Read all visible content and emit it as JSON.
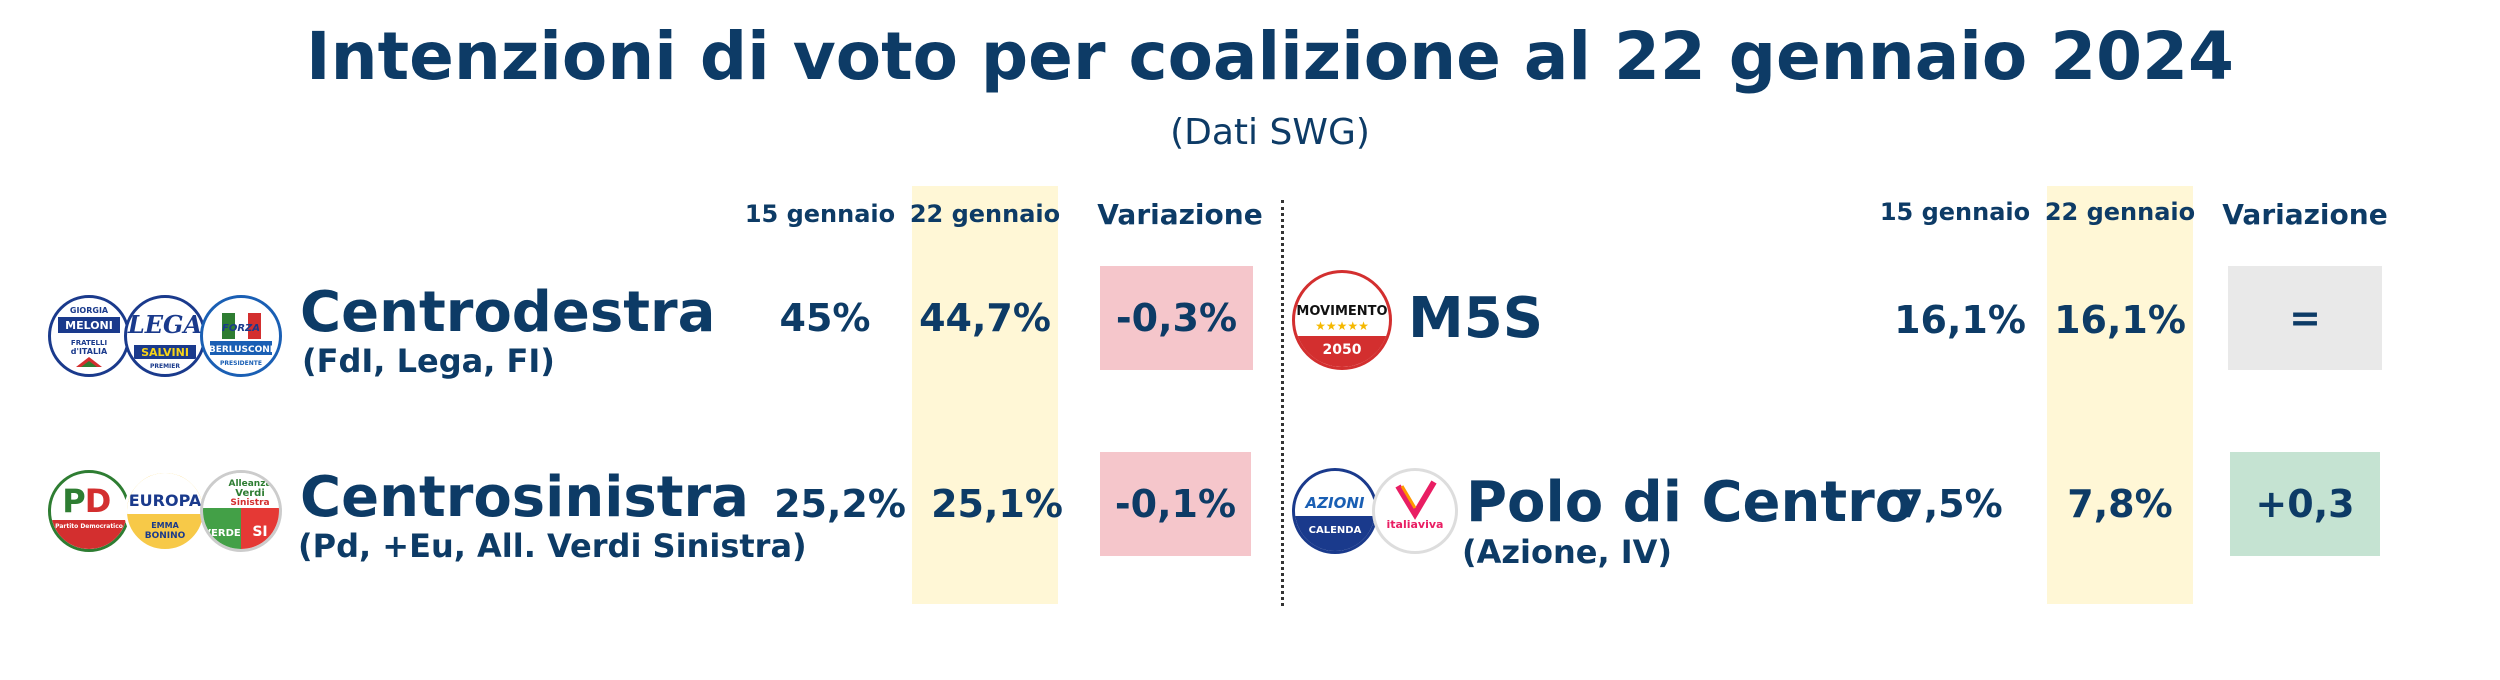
{
  "chart_data": {
    "type": "table",
    "title": "Intenzioni di voto per coalizione al 22 gennaio 2024",
    "subtitle": "(Dati SWG)",
    "columns": [
      "15 gennaio",
      "22 gennaio",
      "Variazione"
    ],
    "rows": [
      {
        "name": "Centrodestra",
        "detail": "(FdI, Lega, FI)",
        "jan15": "45%",
        "jan22": "44,7%",
        "variation": "-0,3%",
        "variation_color": "#f5c6cb",
        "logos": [
          {
            "icon": "fdi-logo",
            "text": "GIORGIA MELONI FRATELLI d'ITALIA"
          },
          {
            "icon": "lega-logo",
            "text": "LEGA SALVINI PREMIER"
          },
          {
            "icon": "forza-italia-logo",
            "text": "FORZA ITALIA BERLUSCONI PRESIDENTE"
          }
        ]
      },
      {
        "name": "Centrosinistra",
        "detail": "(Pd, +Eu, All. Verdi Sinistra)",
        "jan15": "25,2%",
        "jan22": "25,1%",
        "variation": "-0,1%",
        "variation_color": "#f5c6cb",
        "logos": [
          {
            "icon": "pd-logo",
            "text": "PD Partito Democratico"
          },
          {
            "icon": "piu-europa-logo",
            "text": "+EUROPA EMMA BONINO"
          },
          {
            "icon": "avs-logo",
            "text": "Alleanza Verdi Sinistra"
          }
        ]
      },
      {
        "name": "M5S",
        "detail": "",
        "jan15": "16,1%",
        "jan22": "16,1%",
        "variation": "=",
        "variation_color": "#e9e9e9",
        "logos": [
          {
            "icon": "m5s-logo",
            "text": "MOVIMENTO 2050"
          }
        ]
      },
      {
        "name": "Polo di Centro",
        "detail": "(Azione, IV)",
        "jan15": "7,5%",
        "jan22": "7,8%",
        "variation": "+0,3",
        "variation_color": "#c5e3d2",
        "logos": [
          {
            "icon": "azione-logo",
            "text": "AZIONE CALENDA"
          },
          {
            "icon": "italia-viva-logo",
            "text": "italiaviva"
          }
        ]
      }
    ],
    "highlight_column": "22 gennaio",
    "highlight_color": "#fff7d6"
  }
}
